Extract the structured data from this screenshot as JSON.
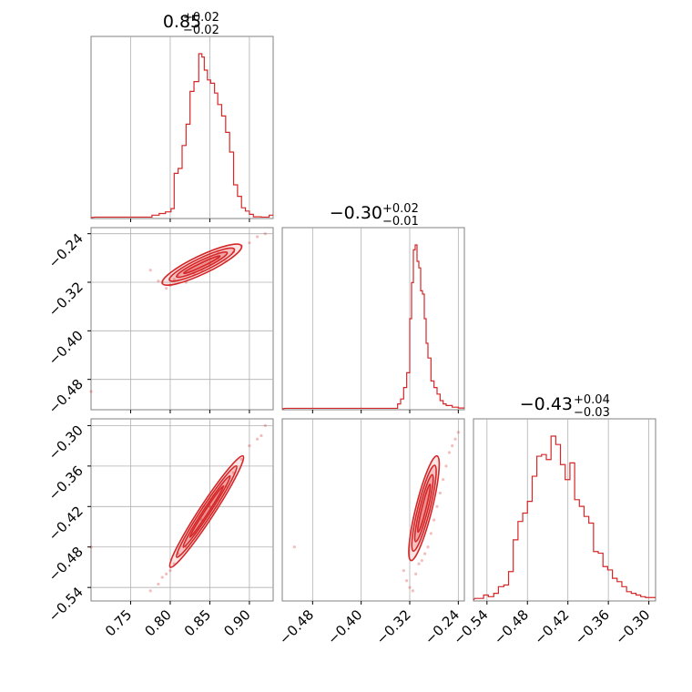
{
  "colors": {
    "series": "#d62728",
    "grid": "#b0b0b0",
    "frame": "#808080"
  },
  "chart_data": [
    {
      "type": "histogram",
      "panel": "0,0",
      "title": {
        "value": "0.85",
        "plus": "+0.02",
        "minus": "−0.02"
      },
      "xlim": [
        0.7,
        0.93
      ],
      "x_ticks": [
        0.75,
        0.8,
        0.85,
        0.9
      ],
      "grid": true,
      "x": [
        0.705,
        0.77,
        0.777,
        0.786,
        0.794,
        0.801,
        0.805,
        0.81,
        0.815,
        0.82,
        0.825,
        0.83,
        0.836,
        0.84,
        0.843,
        0.847,
        0.851,
        0.856,
        0.86,
        0.865,
        0.87,
        0.875,
        0.88,
        0.885,
        0.89,
        0.895,
        0.9,
        0.905,
        0.915,
        0.925
      ],
      "values": [
        0.3,
        0.3,
        1.5,
        2.5,
        3.5,
        5.5,
        27.0,
        30.0,
        44.0,
        57.0,
        77.0,
        83.0,
        100.0,
        98.0,
        90.0,
        84.0,
        82.0,
        76.0,
        69.0,
        62.0,
        52.0,
        40.0,
        20.0,
        13.0,
        6.0,
        4.0,
        2.0,
        0.5,
        0.3,
        1.5
      ]
    },
    {
      "type": "histogram",
      "panel": "1,1",
      "title": {
        "value": "−0.30",
        "plus": "+0.02",
        "minus": "−0.01"
      },
      "xlim": [
        -0.53,
        -0.23
      ],
      "x_ticks": [
        -0.48,
        -0.4,
        -0.32,
        -0.24
      ],
      "grid": true,
      "x": [
        -0.525,
        -0.345,
        -0.34,
        -0.335,
        -0.33,
        -0.325,
        -0.32,
        -0.317,
        -0.314,
        -0.311,
        -0.308,
        -0.305,
        -0.302,
        -0.299,
        -0.296,
        -0.293,
        -0.29,
        -0.285,
        -0.28,
        -0.275,
        -0.27,
        -0.265,
        -0.26,
        -0.25,
        -0.24
      ],
      "values": [
        0.3,
        0.3,
        3.0,
        6.0,
        13.0,
        22.0,
        55.0,
        77.0,
        97.0,
        100.0,
        90.0,
        86.0,
        72.0,
        70.0,
        55.0,
        40.0,
        31.0,
        17.0,
        13.0,
        9.0,
        5.0,
        3.0,
        2.0,
        1.0,
        0.5
      ]
    },
    {
      "type": "histogram",
      "panel": "2,2",
      "title": {
        "value": "−0.43",
        "plus": "+0.04",
        "minus": "−0.03"
      },
      "xlim": [
        -0.56,
        -0.29
      ],
      "x_ticks": [
        -0.54,
        -0.48,
        -0.42,
        -0.36,
        -0.3
      ],
      "grid": true,
      "x": [
        -0.558,
        -0.545,
        -0.538,
        -0.53,
        -0.523,
        -0.515,
        -0.508,
        -0.501,
        -0.494,
        -0.487,
        -0.48,
        -0.473,
        -0.466,
        -0.459,
        -0.452,
        -0.445,
        -0.438,
        -0.431,
        -0.424,
        -0.417,
        -0.41,
        -0.403,
        -0.396,
        -0.389,
        -0.382,
        -0.375,
        -0.368,
        -0.361,
        -0.354,
        -0.347,
        -0.34,
        -0.333,
        -0.326,
        -0.319,
        -0.312,
        -0.305
      ],
      "values": [
        1.0,
        3.0,
        2.0,
        4.0,
        8.0,
        9.0,
        17.0,
        36.0,
        47.0,
        52.0,
        59.0,
        74.0,
        86.0,
        87.0,
        84.0,
        98.0,
        93.0,
        81.0,
        72.0,
        82.0,
        60.0,
        56.0,
        50.0,
        46.0,
        29.0,
        28.0,
        20.0,
        18.0,
        13.0,
        11.0,
        8.0,
        5.0,
        4.0,
        3.0,
        2.0,
        1.5
      ]
    },
    {
      "type": "scatter-contour",
      "panel": "1,0",
      "xlim": [
        0.7,
        0.93
      ],
      "ylim": [
        -0.53,
        -0.23
      ],
      "x_ticks": [
        0.75,
        0.8,
        0.85,
        0.9
      ],
      "y_ticks": [
        -0.24,
        -0.32,
        -0.4,
        -0.48
      ],
      "grid": true,
      "ridge": [
        [
          0.79,
          -0.322
        ],
        [
          0.89,
          -0.26
        ]
      ],
      "contour_widths": [
        0.003,
        0.007,
        0.011,
        0.015
      ],
      "points": [
        [
          0.79,
          -0.32
        ],
        [
          0.785,
          -0.318
        ],
        [
          0.8,
          -0.325
        ],
        [
          0.81,
          -0.31
        ],
        [
          0.775,
          -0.3
        ],
        [
          0.795,
          -0.33
        ],
        [
          0.83,
          -0.305
        ],
        [
          0.86,
          -0.28
        ],
        [
          0.87,
          -0.285
        ],
        [
          0.88,
          -0.27
        ],
        [
          0.9,
          -0.255
        ],
        [
          0.91,
          -0.245
        ],
        [
          0.92,
          -0.24
        ],
        [
          0.805,
          -0.315
        ],
        [
          0.82,
          -0.32
        ],
        [
          0.84,
          -0.3
        ],
        [
          0.85,
          -0.29
        ],
        [
          0.86,
          -0.27
        ],
        [
          0.89,
          -0.26
        ],
        [
          0.7,
          -0.5
        ]
      ]
    },
    {
      "type": "scatter-contour",
      "panel": "2,0",
      "xlim": [
        0.7,
        0.93
      ],
      "ylim": [
        -0.56,
        -0.29
      ],
      "x_ticks": [
        0.75,
        0.8,
        0.85,
        0.9
      ],
      "y_ticks": [
        -0.3,
        -0.36,
        -0.42,
        -0.48,
        -0.54
      ],
      "grid": true,
      "ridge": [
        [
          0.8,
          -0.51
        ],
        [
          0.892,
          -0.345
        ]
      ],
      "contour_widths": [
        0.002,
        0.005,
        0.008,
        0.011
      ],
      "points": [
        [
          0.785,
          -0.535
        ],
        [
          0.79,
          -0.525
        ],
        [
          0.795,
          -0.52
        ],
        [
          0.8,
          -0.515
        ],
        [
          0.805,
          -0.505
        ],
        [
          0.81,
          -0.49
        ],
        [
          0.82,
          -0.48
        ],
        [
          0.83,
          -0.46
        ],
        [
          0.84,
          -0.44
        ],
        [
          0.85,
          -0.42
        ],
        [
          0.86,
          -0.41
        ],
        [
          0.87,
          -0.39
        ],
        [
          0.88,
          -0.37
        ],
        [
          0.89,
          -0.35
        ],
        [
          0.9,
          -0.33
        ],
        [
          0.91,
          -0.32
        ],
        [
          0.92,
          -0.3
        ],
        [
          0.915,
          -0.315
        ],
        [
          0.7,
          -0.48
        ],
        [
          0.775,
          -0.545
        ]
      ]
    },
    {
      "type": "scatter-contour",
      "panel": "2,1",
      "xlim": [
        -0.53,
        -0.23
      ],
      "ylim": [
        -0.56,
        -0.29
      ],
      "x_ticks": [
        -0.48,
        -0.4,
        -0.32,
        -0.24
      ],
      "y_ticks": [],
      "grid": true,
      "ridge": [
        [
          -0.318,
          -0.5
        ],
        [
          -0.275,
          -0.345
        ]
      ],
      "contour_widths": [
        0.003,
        0.006,
        0.009,
        0.012
      ],
      "points": [
        [
          -0.32,
          -0.54
        ],
        [
          -0.315,
          -0.545
        ],
        [
          -0.325,
          -0.53
        ],
        [
          -0.31,
          -0.52
        ],
        [
          -0.3,
          -0.5
        ],
        [
          -0.295,
          -0.49
        ],
        [
          -0.29,
          -0.48
        ],
        [
          -0.285,
          -0.46
        ],
        [
          -0.28,
          -0.44
        ],
        [
          -0.275,
          -0.42
        ],
        [
          -0.27,
          -0.4
        ],
        [
          -0.265,
          -0.38
        ],
        [
          -0.26,
          -0.36
        ],
        [
          -0.255,
          -0.34
        ],
        [
          -0.25,
          -0.33
        ],
        [
          -0.245,
          -0.32
        ],
        [
          -0.24,
          -0.31
        ],
        [
          -0.33,
          -0.515
        ],
        [
          -0.305,
          -0.505
        ],
        [
          -0.51,
          -0.48
        ]
      ]
    }
  ]
}
